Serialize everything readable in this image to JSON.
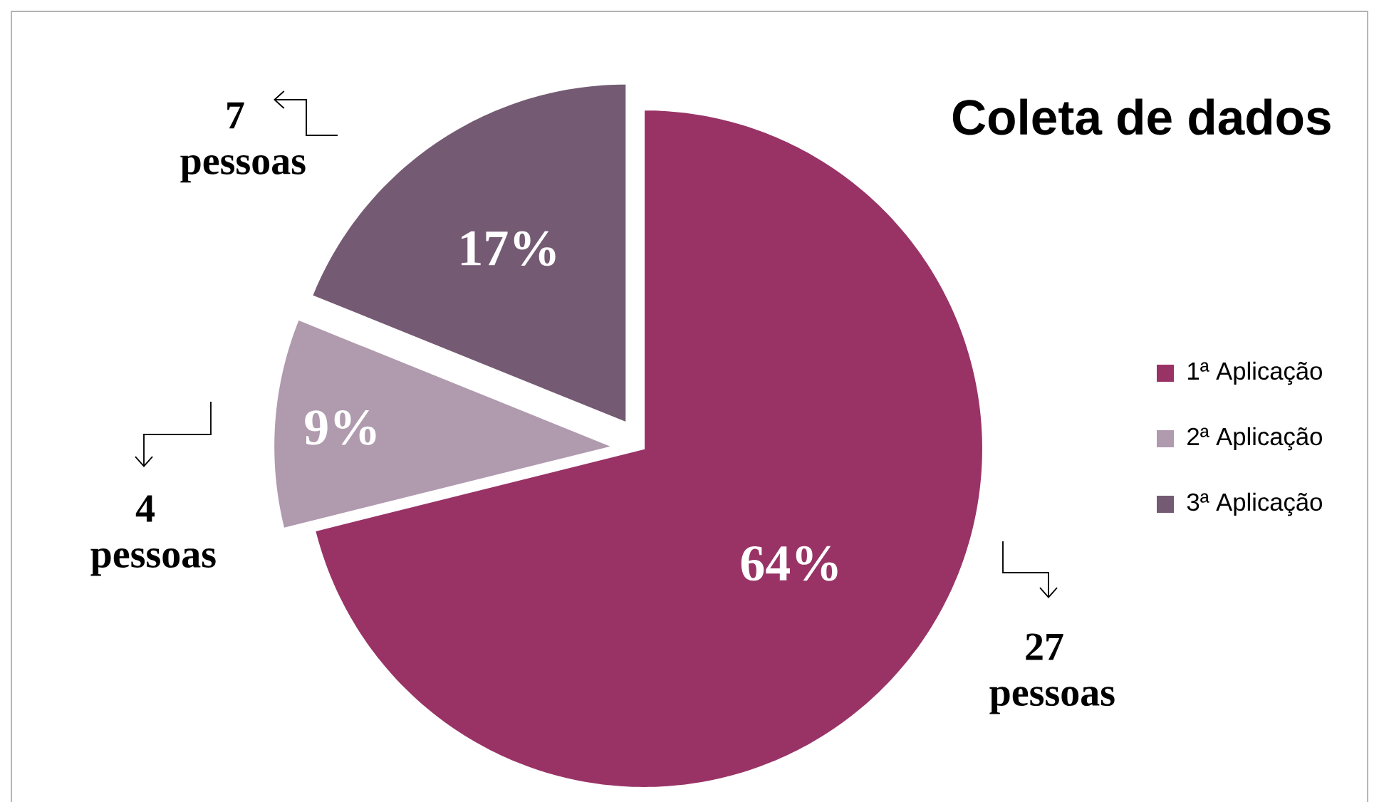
{
  "chart_data": {
    "type": "pie",
    "title": "Coleta de dados",
    "categories": [
      "1ª Aplicação",
      "2ª Aplicação",
      "3ª Aplicação"
    ],
    "values": [
      64,
      9,
      17
    ],
    "value_labels": [
      "64%",
      "9%",
      "17%"
    ],
    "colors": [
      "#993366",
      "#b09aae",
      "#745a72"
    ],
    "legend": "right",
    "annotations": [
      "7 pessoas",
      "4 pessoas",
      "27 pessoas"
    ]
  }
}
